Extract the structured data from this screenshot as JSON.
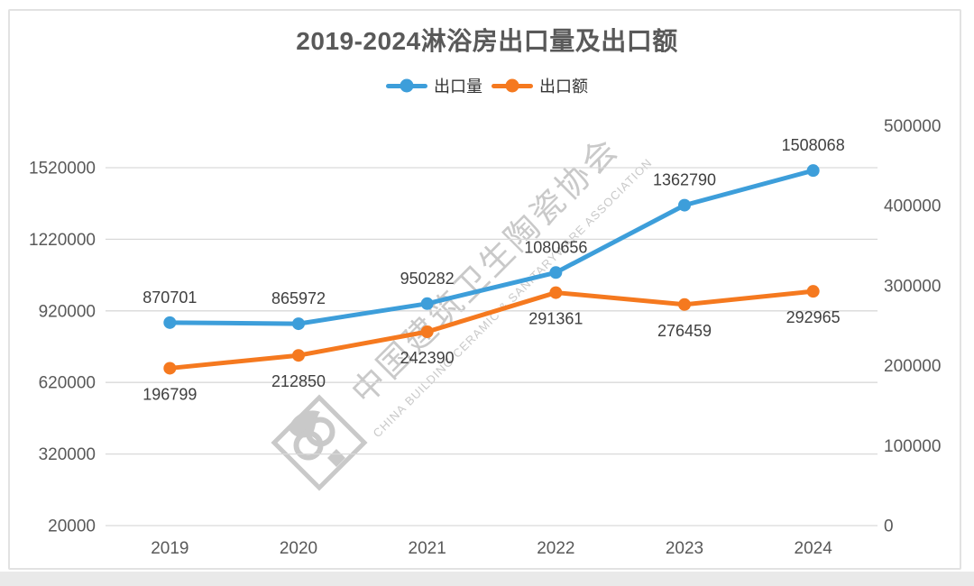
{
  "chart_data": {
    "type": "line",
    "title": "2019-2024淋浴房出口量及出口额",
    "categories": [
      "2019",
      "2020",
      "2021",
      "2022",
      "2023",
      "2024"
    ],
    "series": [
      {
        "name": "出口量",
        "axis": "left",
        "color": "#3d9eda",
        "values": [
          870701,
          865972,
          950282,
          1080656,
          1362790,
          1508068
        ],
        "label_position": "above"
      },
      {
        "name": "出口额",
        "axis": "right",
        "color": "#f5791f",
        "values": [
          196799,
          212850,
          242390,
          291361,
          276459,
          292965
        ],
        "label_position": "below"
      }
    ],
    "left_axis": {
      "min": 20000,
      "max": 1520000,
      "ticks": [
        20000,
        320000,
        620000,
        920000,
        1220000,
        1520000
      ]
    },
    "right_axis": {
      "min": 0,
      "max": 500000,
      "ticks": [
        0,
        100000,
        200000,
        300000,
        400000,
        500000
      ]
    },
    "grid": true,
    "legend_position": "top",
    "gridline_color": "#d9d9d9",
    "watermark": {
      "cn": "中国建筑卫生陶瓷协会",
      "en": "CHINA BUILDING CERAMIC & SANITARYWARE ASSOCIATION"
    }
  }
}
